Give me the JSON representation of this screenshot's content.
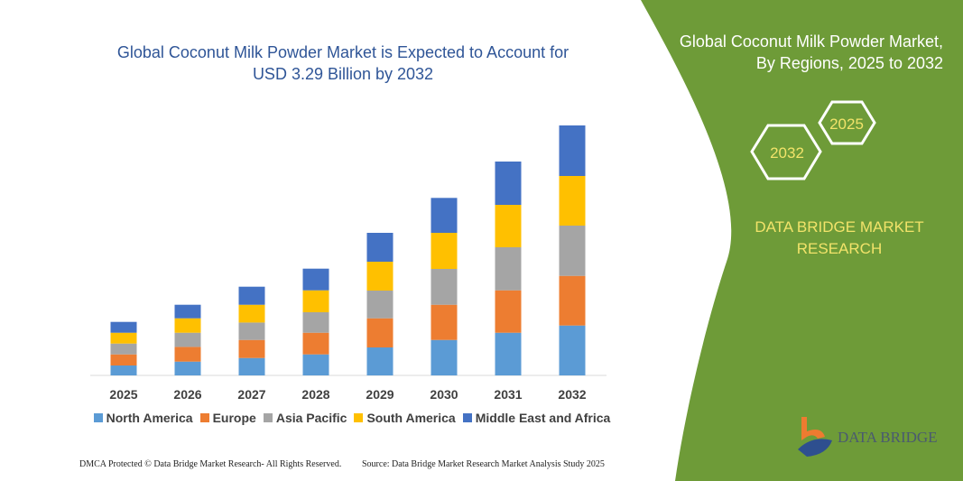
{
  "header": {
    "title_line1": "Global Coconut Milk Powder Market is Expected to Account for",
    "title_line2": "USD 3.29 Billion by 2032"
  },
  "side_panel": {
    "title_line1": "Global Coconut Milk Powder Market,",
    "title_line2": "By Regions, 2025 to 2032",
    "hex_start": "2025",
    "hex_end": "2032",
    "brand_line1": "DATA BRIDGE MARKET",
    "brand_line2": "RESEARCH",
    "logo_text": "DATA BRIDGE",
    "panel_color": "#6e9b38"
  },
  "footer": {
    "left": "DMCA Protected © Data Bridge Market Research-  All Rights Reserved.",
    "right": "Source: Data Bridge Market Research  Market Analysis Study 2025"
  },
  "chart_data": {
    "type": "bar",
    "stacked": true,
    "title": "Global Coconut Milk Powder Market is Expected to Account for USD 3.29 Billion by 2032",
    "xlabel": "",
    "ylabel": "",
    "y_axis_shown": false,
    "grid": false,
    "legend_position": "bottom",
    "value_units": "relative (no axis printed)",
    "categories": [
      "2025",
      "2026",
      "2027",
      "2028",
      "2029",
      "2030",
      "2031",
      "2032"
    ],
    "series": [
      {
        "name": "North America",
        "color": "#5b9bd5",
        "values": [
          11,
          15.3,
          19.3,
          23.3,
          31,
          39.3,
          47.3,
          55.3
        ]
      },
      {
        "name": "Europe",
        "color": "#ed7d31",
        "values": [
          12.3,
          16.3,
          20,
          24,
          32.3,
          39,
          47,
          55
        ]
      },
      {
        "name": "Asia Pacific",
        "color": "#a5a5a5",
        "values": [
          12,
          15.7,
          19.3,
          22.7,
          30.7,
          39.7,
          47.7,
          55.7
        ]
      },
      {
        "name": "South America",
        "color": "#ffc000",
        "values": [
          12,
          16,
          19.7,
          24.3,
          32,
          40,
          47,
          55
        ]
      },
      {
        "name": "Middle East and Africa",
        "color": "#4472c4",
        "values": [
          12,
          15,
          20,
          24,
          32,
          38.7,
          48,
          56
        ]
      }
    ]
  }
}
